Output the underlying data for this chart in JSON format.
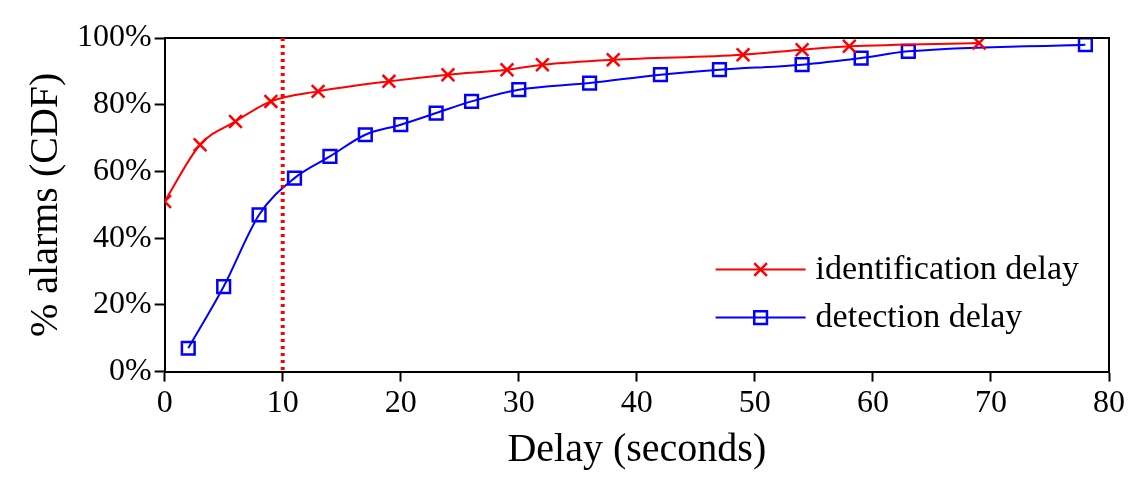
{
  "chart_data": {
    "type": "line",
    "xlabel": "Delay (seconds)",
    "ylabel": "% alarms (CDF)",
    "series": [
      {
        "name": "identification delay",
        "color": "#ff0000",
        "marker": "cross",
        "x": [
          0,
          3,
          6,
          9,
          13,
          19,
          24,
          29,
          32,
          38,
          49,
          54,
          58,
          69
        ],
        "values": [
          51,
          68,
          75,
          81,
          84,
          87,
          89,
          90.5,
          92,
          93.5,
          95,
          96.5,
          97.5,
          98.5
        ]
      },
      {
        "name": "detection delay",
        "color": "#0000ff",
        "marker": "square",
        "x": [
          2,
          5,
          8,
          11,
          14,
          17,
          20,
          23,
          26,
          30,
          36,
          42,
          47,
          54,
          59,
          63,
          78
        ],
        "values": [
          7,
          25.5,
          47,
          58,
          64.5,
          71,
          74,
          77.5,
          81,
          84.5,
          86.5,
          89,
          90.5,
          92,
          94,
          96,
          98
        ]
      }
    ],
    "xlim": [
      0,
      80
    ],
    "xticks": [
      0,
      10,
      20,
      30,
      40,
      50,
      60,
      70,
      80
    ],
    "ylim": [
      0,
      100
    ],
    "yticks": [
      {
        "value": 0,
        "label": "0%"
      },
      {
        "value": 20,
        "label": "20%"
      },
      {
        "value": 40,
        "label": "40%"
      },
      {
        "value": 60,
        "label": "60%"
      },
      {
        "value": 80,
        "label": "80%"
      },
      {
        "value": 100,
        "label": "100%"
      }
    ],
    "ref_lines": [
      {
        "axis": "x",
        "value": 10,
        "label": null,
        "color": "#ff0000",
        "line_style": "dotted"
      }
    ],
    "grid": false,
    "legend": "bottom right",
    "line_style": "solid"
  }
}
